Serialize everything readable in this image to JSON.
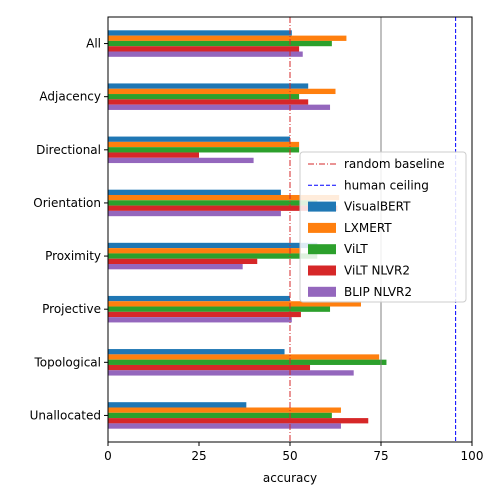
{
  "chart_data": {
    "type": "bar",
    "orientation": "horizontal",
    "categories": [
      "All",
      "Adjacency",
      "Directional",
      "Orientation",
      "Proximity",
      "Projective",
      "Topological",
      "Unallocated"
    ],
    "series": [
      {
        "name": "VisualBERT",
        "color": "#1f77b4",
        "values": [
          50.5,
          55.0,
          50.0,
          47.5,
          57.5,
          50.0,
          48.5,
          38.0
        ]
      },
      {
        "name": "LXMERT",
        "color": "#ff7f0e",
        "values": [
          65.5,
          62.5,
          52.5,
          63.5,
          53.0,
          69.5,
          74.5,
          64.0
        ]
      },
      {
        "name": "ViLT",
        "color": "#2ca02c",
        "values": [
          61.5,
          52.5,
          52.5,
          57.5,
          57.5,
          61.0,
          76.5,
          61.5
        ]
      },
      {
        "name": "ViLT NLVR2",
        "color": "#d62728",
        "values": [
          52.5,
          55.0,
          25.0,
          63.0,
          41.0,
          53.0,
          55.5,
          71.5
        ]
      },
      {
        "name": "BLIP NLVR2",
        "color": "#9467bd",
        "values": [
          53.5,
          61.0,
          40.0,
          47.5,
          37.0,
          50.5,
          67.5,
          64.0
        ]
      }
    ],
    "reference_lines": [
      {
        "name": "random baseline",
        "value": 50,
        "color": "#d62728",
        "style": "dashdot"
      },
      {
        "name": "human ceiling",
        "value": 95.5,
        "color": "#0000ff",
        "style": "dashed"
      },
      {
        "name": "",
        "value": 75,
        "color": "#808080",
        "style": "solid"
      }
    ],
    "xlabel": "accuracy",
    "ylabel": "",
    "title": "",
    "xlim": [
      0,
      100
    ],
    "xticks": [
      0,
      25,
      50,
      75,
      100
    ],
    "grid": false,
    "legend_position": "center-right"
  }
}
